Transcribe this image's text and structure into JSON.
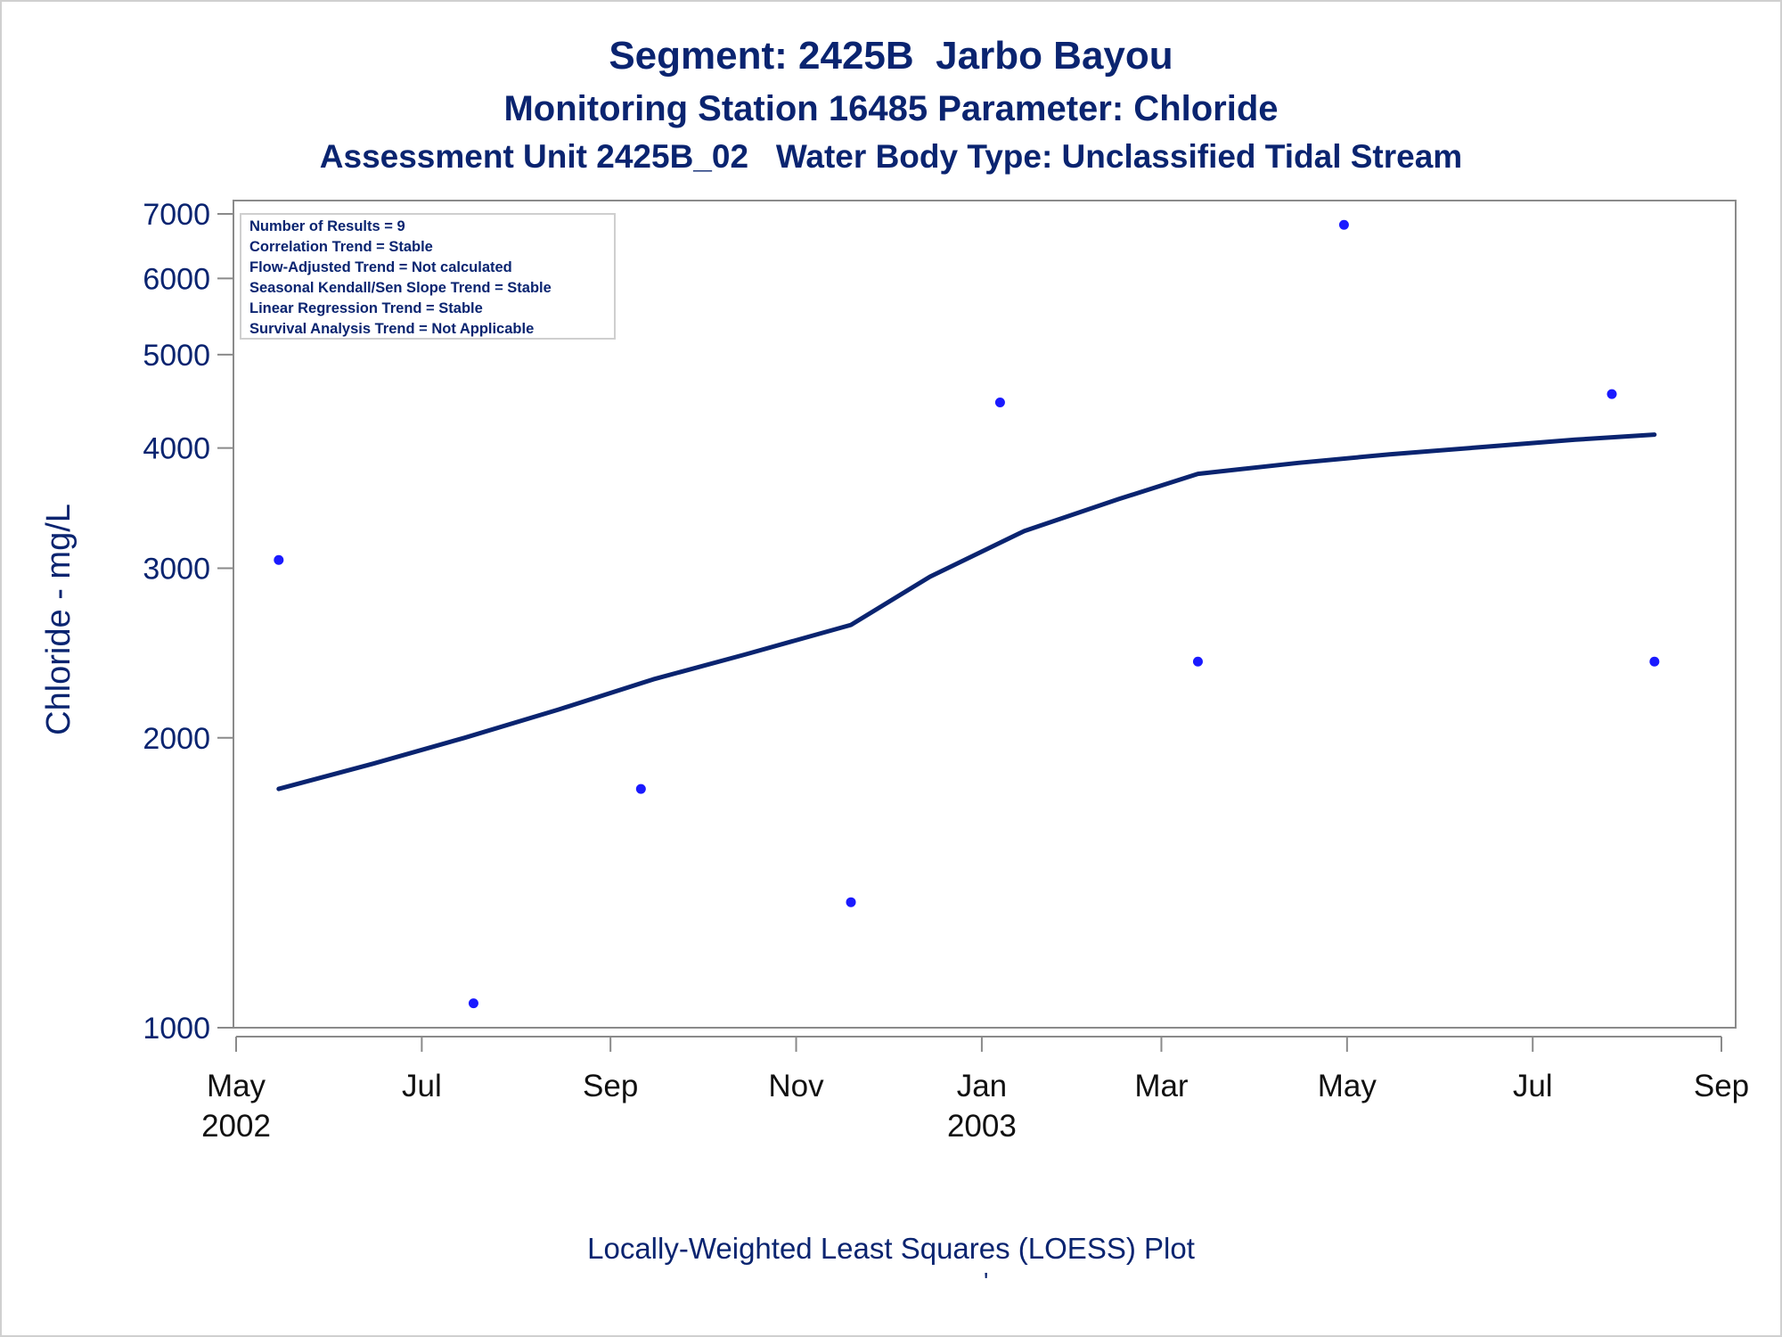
{
  "titles": {
    "title": "Segment: 2425B  Jarbo Bayou",
    "subtitle1": "Monitoring Station 16485 Parameter: Chloride",
    "subtitle2": "Assessment Unit 2425B_02   Water Body Type: Unclassified Tidal Stream"
  },
  "footnote": "Locally-Weighted Least Squares (LOESS) Plot",
  "footnote_mark": "'",
  "inset_lines": [
    "Number of Results = 9",
    "Correlation Trend = Stable",
    "Flow-Adjusted Trend = Not calculated",
    "Seasonal Kendall/Sen Slope Trend = Stable",
    "Linear Regression Trend = Stable",
    "Survival Analysis Trend = Not Applicable"
  ],
  "colors": {
    "text": "#0a2470",
    "points": "#1a1aff",
    "loess_line": "#0a2470",
    "axis": "#8a8a8a"
  },
  "chart_data": {
    "type": "scatter",
    "title": "Segment: 2425B  Jarbo Bayou",
    "xlabel": "",
    "ylabel": "Chloride - mg/L",
    "y_scale": "log",
    "ylim": [
      1000,
      7000
    ],
    "xlim": [
      "2002-05-01",
      "2003-09-01"
    ],
    "grid": false,
    "y_ticks": [
      1000,
      2000,
      3000,
      4000,
      5000,
      6000,
      7000
    ],
    "x_ticks": [
      {
        "date": "2002-05-01",
        "label": "May",
        "year": "2002"
      },
      {
        "date": "2002-07-01",
        "label": "Jul",
        "year": ""
      },
      {
        "date": "2002-09-01",
        "label": "Sep",
        "year": ""
      },
      {
        "date": "2002-11-01",
        "label": "Nov",
        "year": ""
      },
      {
        "date": "2003-01-01",
        "label": "Jan",
        "year": "2003"
      },
      {
        "date": "2003-03-01",
        "label": "Mar",
        "year": ""
      },
      {
        "date": "2003-05-01",
        "label": "May",
        "year": ""
      },
      {
        "date": "2003-07-01",
        "label": "Jul",
        "year": ""
      },
      {
        "date": "2003-09-01",
        "label": "Sep",
        "year": ""
      }
    ],
    "series": [
      {
        "kind": "points",
        "points": [
          {
            "x": "2002-05-15",
            "y": 3060
          },
          {
            "x": "2002-07-18",
            "y": 1060
          },
          {
            "x": "2002-09-11",
            "y": 1770
          },
          {
            "x": "2002-11-19",
            "y": 1350
          },
          {
            "x": "2003-01-07",
            "y": 4460
          },
          {
            "x": "2003-03-13",
            "y": 2400
          },
          {
            "x": "2003-04-30",
            "y": 6820
          },
          {
            "x": "2003-07-27",
            "y": 4550
          },
          {
            "x": "2003-08-10",
            "y": 2400
          }
        ]
      },
      {
        "kind": "loess",
        "points": [
          {
            "x": "2002-05-15",
            "y": 1770
          },
          {
            "x": "2002-06-15",
            "y": 1880
          },
          {
            "x": "2002-07-15",
            "y": 2000
          },
          {
            "x": "2002-08-15",
            "y": 2140
          },
          {
            "x": "2002-09-15",
            "y": 2300
          },
          {
            "x": "2002-10-15",
            "y": 2440
          },
          {
            "x": "2002-11-19",
            "y": 2620
          },
          {
            "x": "2002-12-15",
            "y": 2940
          },
          {
            "x": "2003-01-15",
            "y": 3280
          },
          {
            "x": "2003-02-15",
            "y": 3540
          },
          {
            "x": "2003-03-13",
            "y": 3760
          },
          {
            "x": "2003-04-15",
            "y": 3860
          },
          {
            "x": "2003-05-15",
            "y": 3940
          },
          {
            "x": "2003-06-15",
            "y": 4010
          },
          {
            "x": "2003-07-15",
            "y": 4080
          },
          {
            "x": "2003-08-10",
            "y": 4130
          }
        ]
      }
    ]
  }
}
